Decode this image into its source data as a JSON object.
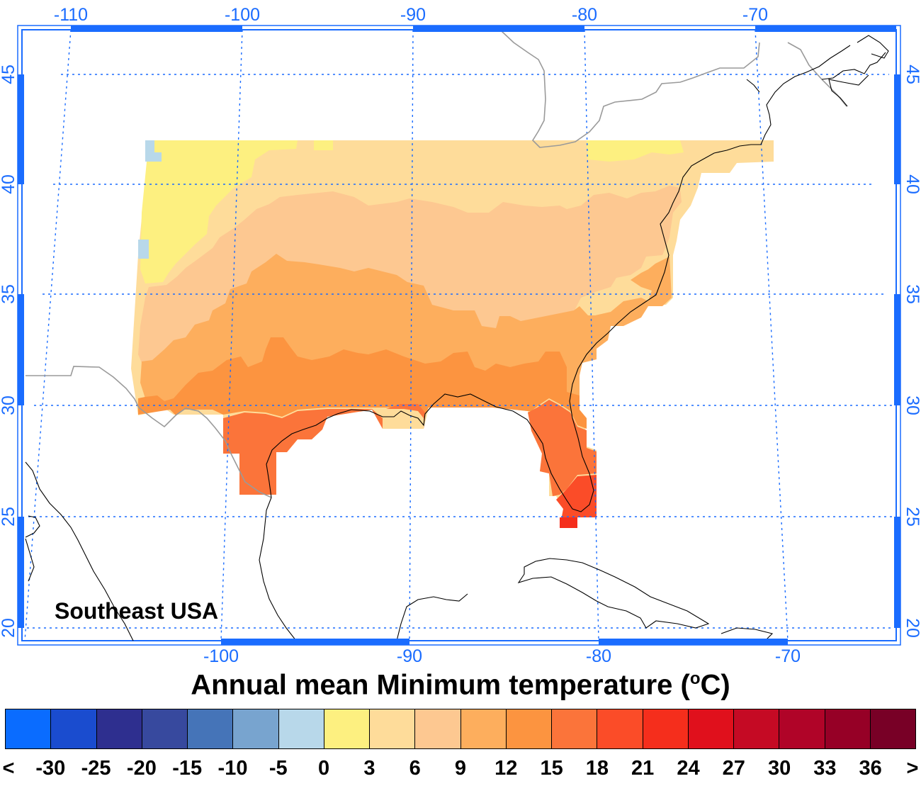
{
  "map": {
    "region_label": "Southeast USA",
    "top_lon_labels": [
      "-110",
      "-100",
      "-90",
      "-80",
      "-70"
    ],
    "bottom_lon_labels": [
      "-100",
      "-90",
      "-80",
      "-70"
    ],
    "lat_labels": [
      "45",
      "40",
      "35",
      "30",
      "25",
      "20"
    ],
    "colors": {
      "axis": "#1a6cff",
      "gridline": "#1a6cff",
      "country_border": "#9a9a9a",
      "coastline": "#000000"
    }
  },
  "title": {
    "text": "Annual mean Minimum temperature (",
    "unit_sup": "o",
    "unit_tail": "C)"
  },
  "legend": {
    "labels": [
      "<",
      "-30",
      "-25",
      "-20",
      "-15",
      "-10",
      "-5",
      "0",
      "3",
      "6",
      "9",
      "12",
      "15",
      "18",
      "21",
      "24",
      "27",
      "30",
      "33",
      "36",
      ">"
    ],
    "colors": [
      "#0a6cff",
      "#1a4ccf",
      "#2e2f8f",
      "#37499e",
      "#4574b8",
      "#78a4cf",
      "#b8d8ea",
      "#fdf080",
      "#fedc9a",
      "#fdc891",
      "#fdae5d",
      "#fc9440",
      "#fb743a",
      "#fb4c28",
      "#f52e1c",
      "#e0101c",
      "#c50a24",
      "#b00428",
      "#960026",
      "#780026"
    ]
  },
  "chart_data": {
    "type": "heatmap",
    "title": "Annual mean Minimum temperature (°C)",
    "region": "Southeast USA",
    "unit": "°C",
    "legend_bins": [
      "<-30",
      "-30 to -25",
      "-25 to -20",
      "-20 to -15",
      "-15 to -10",
      "-10 to -5",
      "-5 to 0",
      "0 to 3",
      "3 to 6",
      "6 to 9",
      "9 to 12",
      "12 to 15",
      "15 to 18",
      "18 to 21",
      "21 to 24",
      "24 to 27",
      "27 to 30",
      "30 to 33",
      "33 to 36",
      ">36"
    ],
    "lon_range": [
      -112,
      -65
    ],
    "lat_range": [
      19.5,
      47
    ],
    "grid": true,
    "zones": [
      {
        "area": "Northern Plains / Great Plains west edge (~38-42N, ~104-98W)",
        "bin": "0 to 3"
      },
      {
        "area": "Central band (~36-41N, Ohio/Tennessee valleys to mid-Atlantic)",
        "bin": "3 to 6"
      },
      {
        "area": "Southern Plains / Southeast interior (~33-37N)",
        "bin": "6 to 9"
      },
      {
        "area": "Gulf coast states interior (~31-34N)",
        "bin": "9 to 12"
      },
      {
        "area": "Gulf coast / southern Georgia (~29-31N)",
        "bin": "12 to 15"
      },
      {
        "area": "South Texas coast and north-central Florida (~27-29N)",
        "bin": "15 to 18"
      },
      {
        "area": "South Florida (~25.5-27N)",
        "bin": "18 to 21"
      },
      {
        "area": "Florida Keys (~25N)",
        "bin": "21 to 24"
      },
      {
        "area": "Colorado Rockies high points (~37-41N, ~106W)",
        "bin": "-5 to 0"
      }
    ]
  }
}
